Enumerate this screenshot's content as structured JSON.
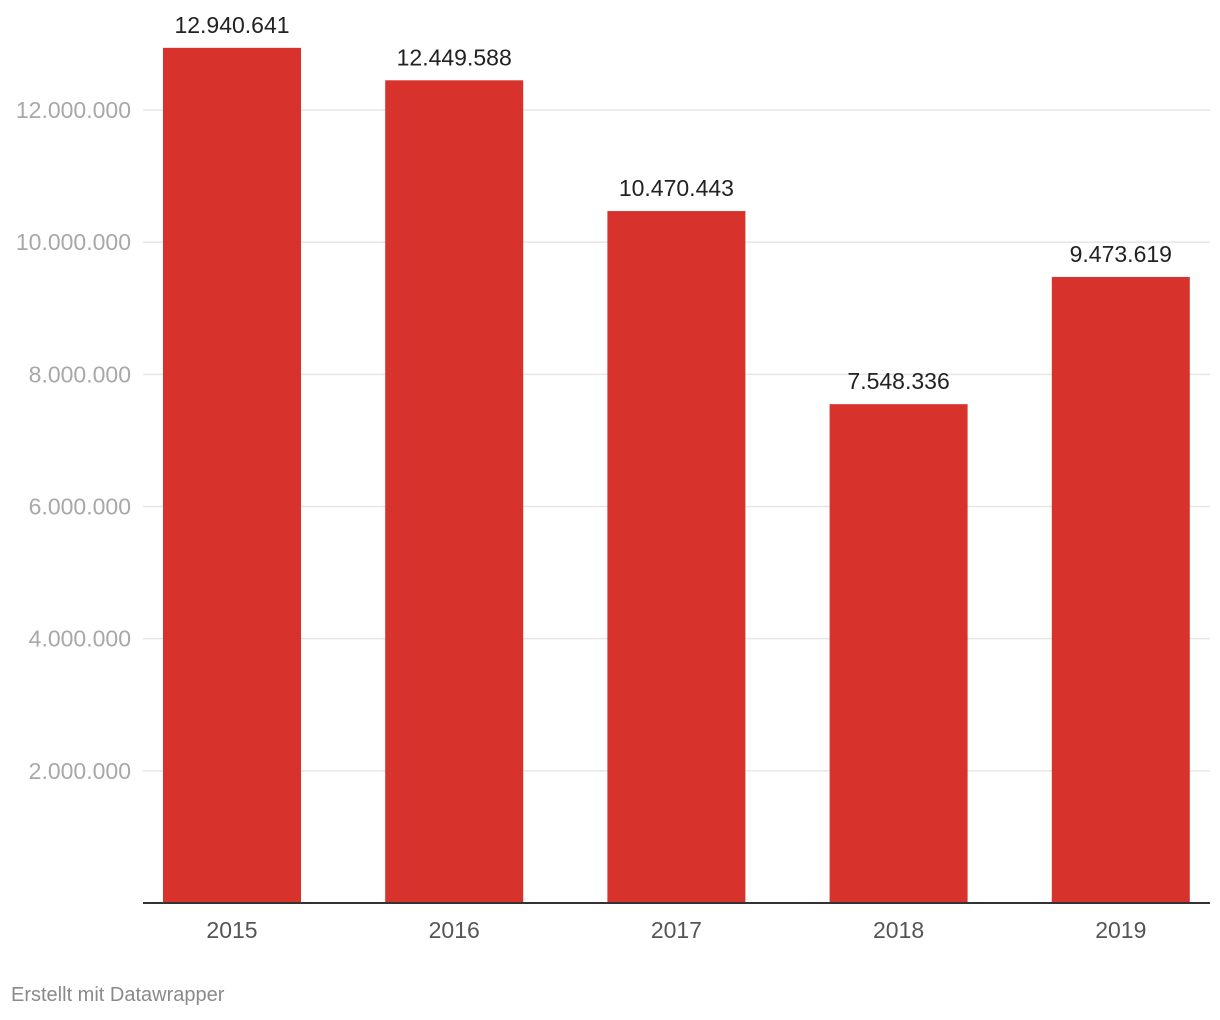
{
  "chart_data": {
    "type": "bar",
    "title": "",
    "xlabel": "",
    "ylabel": "",
    "categories": [
      "2015",
      "2016",
      "2017",
      "2018",
      "2019"
    ],
    "values": [
      12940641,
      12449588,
      10470443,
      7548336,
      9473619
    ],
    "value_labels": [
      "12.940.641",
      "12.449.588",
      "10.470.443",
      "7.548.336",
      "9.473.619"
    ],
    "ylim": [
      0,
      13000000
    ],
    "y_ticks": [
      2000000,
      4000000,
      6000000,
      8000000,
      10000000,
      12000000
    ],
    "y_tick_labels": [
      "2.000.000",
      "4.000.000",
      "6.000.000",
      "8.000.000",
      "10.000.000",
      "12.000.000"
    ],
    "grid": true,
    "bar_color": "#d8322c"
  },
  "footer": {
    "credit": "Erstellt mit Datawrapper"
  }
}
